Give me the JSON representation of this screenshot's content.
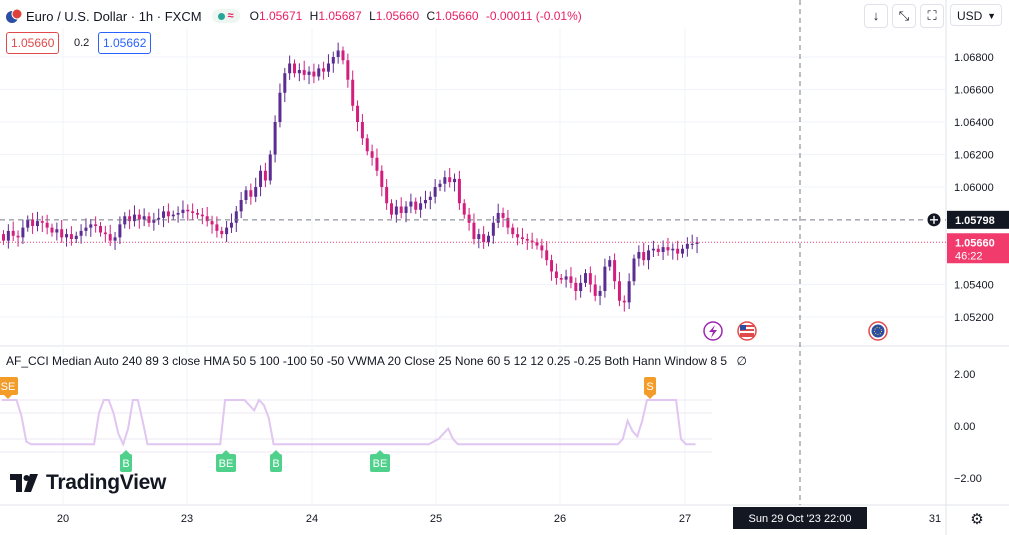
{
  "header": {
    "symbol_title": "Euro / U.S. Dollar · 1h · FXCM",
    "ohlc": [
      {
        "label": "O",
        "value": "1.05671"
      },
      {
        "label": "H",
        "value": "1.05687"
      },
      {
        "label": "L",
        "value": "1.05660"
      },
      {
        "label": "C",
        "value": "1.05660"
      },
      {
        "label": "",
        "value": "-0.00011 (-0.01%)"
      }
    ],
    "sell_price": "1.05660",
    "spread": "0.2",
    "buy_price": "1.05662"
  },
  "toolbar": {
    "down_icon": "arrow-down-icon",
    "collapse_icon": "collapse-icon",
    "fullscreen_icon": "fullscreen-icon",
    "currency": "USD"
  },
  "indicator": {
    "legend": "AF_CCI Median Auto 240 89 3 close HMA 50 5 100 -100 50 -50 VWMA 20 Close 25 None 60 5 12 12 0.25 -0.25 Both Hann Window 8 5",
    "legend_value": "∅",
    "color": "#e0c6f0",
    "signals": [
      {
        "label": "SE",
        "color": "#f39c2a"
      },
      {
        "label": "B",
        "color": "#4fd18b"
      },
      {
        "label": "BE",
        "color": "#4fd18b"
      },
      {
        "label": "B",
        "color": "#4fd18b"
      },
      {
        "label": "BE",
        "color": "#4fd18b"
      },
      {
        "label": "S",
        "color": "#f39c2a"
      }
    ]
  },
  "price_axis": {
    "labels": [
      "1.06800",
      "1.06600",
      "1.06400",
      "1.06200",
      "1.06000",
      "1.05400",
      "1.05200"
    ],
    "crosshair_value": "1.05798",
    "last_price": "1.05660",
    "countdown": "46:22"
  },
  "indicator_axis": {
    "labels": [
      "2.00",
      "0.00",
      "−2.00"
    ]
  },
  "time_axis": {
    "labels": [
      "20",
      "23",
      "24",
      "25",
      "26",
      "27",
      "31"
    ],
    "crosshair_label": "Sun 29 Oct '23   22:00"
  },
  "branding": {
    "name": "TradingView"
  },
  "colors": {
    "up": "#5b2c91",
    "down": "#d21f7d",
    "last_price": "#f23b6d",
    "grid": "#f0f3fa"
  },
  "chart_data": [
    {
      "type": "candlestick",
      "ylim": [
        1.051,
        1.0695
      ],
      "x_ticks": [
        "20",
        "23",
        "24",
        "25",
        "26",
        "27",
        "31"
      ],
      "y_ticks": [
        1.068,
        1.066,
        1.064,
        1.062,
        1.06,
        1.054,
        1.052
      ],
      "closes": [
        1.0567,
        1.0573,
        1.057,
        1.0569,
        1.0575,
        1.058,
        1.0576,
        1.0579,
        1.0578,
        1.0575,
        1.0572,
        1.0574,
        1.0569,
        1.0571,
        1.0568,
        1.057,
        1.0573,
        1.0575,
        1.0577,
        1.0576,
        1.0572,
        1.0571,
        1.0567,
        1.0569,
        1.0577,
        1.0582,
        1.0579,
        1.0583,
        1.058,
        1.0582,
        1.0578,
        1.058,
        1.0581,
        1.0585,
        1.0582,
        1.0583,
        1.0584,
        1.0586,
        1.0585,
        1.0584,
        1.0583,
        1.0582,
        1.0579,
        1.0577,
        1.0573,
        1.0571,
        1.0575,
        1.0578,
        1.0585,
        1.0592,
        1.0598,
        1.0594,
        1.06,
        1.061,
        1.0604,
        1.062,
        1.064,
        1.0658,
        1.067,
        1.0676,
        1.067,
        1.0672,
        1.0669,
        1.0671,
        1.0668,
        1.0673,
        1.0671,
        1.0676,
        1.068,
        1.0684,
        1.0678,
        1.0666,
        1.065,
        1.064,
        1.063,
        1.0622,
        1.0618,
        1.061,
        1.06,
        1.059,
        1.0583,
        1.0588,
        1.0584,
        1.0588,
        1.0591,
        1.0586,
        1.059,
        1.0592,
        1.0594,
        1.06,
        1.0602,
        1.0606,
        1.0603,
        1.0605,
        1.059,
        1.0583,
        1.0578,
        1.0568,
        1.0571,
        1.0566,
        1.057,
        1.0578,
        1.0584,
        1.0581,
        1.0575,
        1.0571,
        1.0569,
        1.0568,
        1.0567,
        1.0566,
        1.0564,
        1.0561,
        1.0555,
        1.0548,
        1.0544,
        1.0543,
        1.0545,
        1.0541,
        1.0536,
        1.0541,
        1.0547,
        1.054,
        1.0533,
        1.0536,
        1.0551,
        1.0555,
        1.0542,
        1.053,
        1.0529,
        1.0542,
        1.0556,
        1.056,
        1.0555,
        1.0561,
        1.0562,
        1.056,
        1.0563,
        1.0561,
        1.0562,
        1.0559,
        1.0562,
        1.0565,
        1.0565,
        1.0566
      ],
      "last_price": 1.0566,
      "crosshair_value": 1.05798
    },
    {
      "type": "line",
      "ylim": [
        -3.0,
        3.0
      ],
      "y_ticks": [
        2.0,
        0.0,
        -2.0
      ],
      "values": [
        1.0,
        1.0,
        1.0,
        1.0,
        0.4,
        -0.6,
        -0.7,
        -0.7,
        -0.7,
        -0.7,
        -0.7,
        -0.7,
        -0.7,
        -0.7,
        -0.7,
        -0.7,
        -0.7,
        -0.7,
        -0.7,
        -0.7,
        0.5,
        1.0,
        1.0,
        0.5,
        -0.3,
        -0.7,
        -0.1,
        1.0,
        1.0,
        0.2,
        -0.7,
        -0.7,
        -0.7,
        -0.7,
        -0.7,
        -0.7,
        -0.7,
        -0.7,
        -0.7,
        -0.7,
        -0.7,
        -0.7,
        -0.7,
        -0.7,
        -0.7,
        -0.7,
        1.0,
        1.0,
        1.0,
        1.0,
        1.0,
        0.8,
        0.6,
        1.0,
        0.8,
        0.3,
        -0.7,
        -0.7,
        -0.7,
        -0.7,
        -0.7,
        -0.7,
        -0.7,
        -0.7,
        -0.7,
        -0.7,
        -0.7,
        -0.7,
        -0.7,
        -0.7,
        -0.7,
        -0.7,
        -0.7,
        -0.7,
        -0.7,
        -0.7,
        -0.7,
        -0.7,
        -0.7,
        -0.7,
        -0.7,
        -0.7,
        -0.7,
        -0.7,
        -0.7,
        -0.7,
        -0.7,
        -0.7,
        -0.7,
        -0.6,
        -0.5,
        -0.3,
        -0.1,
        -0.5,
        -0.7,
        -0.7,
        -0.7,
        -0.7,
        -0.7,
        -0.7,
        -0.7,
        -0.7,
        -0.7,
        -0.7,
        -0.7,
        -0.7,
        -0.7,
        -0.7,
        -0.7,
        -0.7,
        -0.7,
        -0.7,
        -0.7,
        -0.7,
        -0.7,
        -0.7,
        -0.7,
        -0.7,
        -0.7,
        -0.7,
        -0.7,
        -0.7,
        -0.7,
        -0.7,
        -0.7,
        -0.7,
        -0.7,
        -0.7,
        -0.5,
        0.2,
        -0.2,
        -0.4,
        0.2,
        1.0,
        1.0,
        1.0,
        1.0,
        1.0,
        1.0,
        1.0,
        -0.5,
        -0.7,
        -0.7,
        -0.7
      ]
    }
  ]
}
